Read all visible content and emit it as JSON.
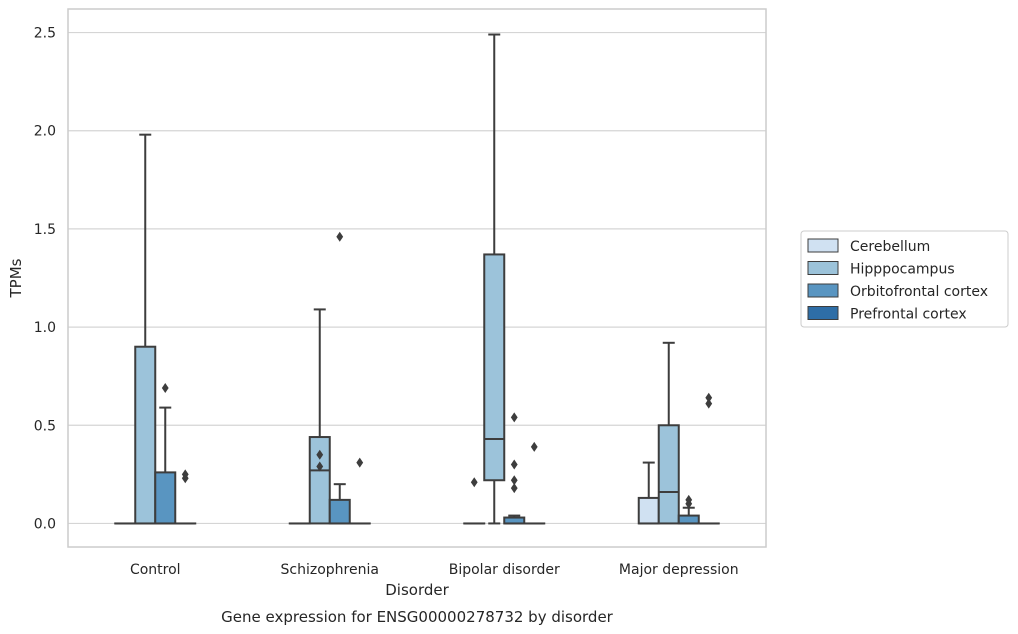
{
  "chart_data": {
    "type": "box",
    "caption": "Gene expression for ENSG00000278732 by disorder",
    "xlabel": "Disorder",
    "ylabel": "TPMs",
    "ylim": [
      -0.12,
      2.62
    ],
    "yticks": [
      "0.0",
      "0.5",
      "1.0",
      "1.5",
      "2.0",
      "2.5"
    ],
    "grid": true,
    "legend_position": "right",
    "categories": [
      "Control",
      "Schizophrenia",
      "Bipolar disorder",
      "Major depression"
    ],
    "series": [
      {
        "name": "Cerebellum",
        "color": "#d0e1f2",
        "boxes": [
          {
            "q1": 0,
            "median": 0,
            "q3": 0,
            "whisker_low": 0,
            "whisker_high": 0,
            "outliers": []
          },
          {
            "q1": 0,
            "median": 0,
            "q3": 0,
            "whisker_low": 0,
            "whisker_high": 0,
            "outliers": []
          },
          {
            "q1": 0,
            "median": 0,
            "q3": 0,
            "whisker_low": 0,
            "whisker_high": 0,
            "outliers": [
              0.21
            ]
          },
          {
            "q1": 0,
            "median": 0,
            "q3": 0.13,
            "whisker_low": 0,
            "whisker_high": 0.31,
            "outliers": []
          }
        ]
      },
      {
        "name": "Hipppocampus",
        "color": "#9cc3da",
        "boxes": [
          {
            "q1": 0,
            "median": 0,
            "q3": 0.9,
            "whisker_low": 0,
            "whisker_high": 1.98,
            "outliers": []
          },
          {
            "q1": 0,
            "median": 0.27,
            "q3": 0.44,
            "whisker_low": 0,
            "whisker_high": 1.09,
            "outliers": [
              0.29,
              0.35
            ]
          },
          {
            "q1": 0.22,
            "median": 0.43,
            "q3": 1.37,
            "whisker_low": 0,
            "whisker_high": 2.49,
            "outliers": []
          },
          {
            "q1": 0,
            "median": 0.16,
            "q3": 0.5,
            "whisker_low": 0,
            "whisker_high": 0.92,
            "outliers": []
          }
        ]
      },
      {
        "name": "Orbitofrontal cortex",
        "color": "#5995c1",
        "boxes": [
          {
            "q1": 0,
            "median": 0,
            "q3": 0.26,
            "whisker_low": 0,
            "whisker_high": 0.59,
            "outliers": [
              0.69
            ]
          },
          {
            "q1": 0,
            "median": 0,
            "q3": 0.12,
            "whisker_low": 0,
            "whisker_high": 0.2,
            "outliers": [
              1.46
            ]
          },
          {
            "q1": 0,
            "median": 0,
            "q3": 0.03,
            "whisker_low": 0,
            "whisker_high": 0.04,
            "outliers": [
              0.18,
              0.22,
              0.3,
              0.54
            ]
          },
          {
            "q1": 0,
            "median": 0,
            "q3": 0.04,
            "whisker_low": 0,
            "whisker_high": 0.08,
            "outliers": [
              0.1,
              0.12
            ]
          }
        ]
      },
      {
        "name": "Prefrontal cortex",
        "color": "#2e6ea7",
        "boxes": [
          {
            "q1": 0,
            "median": 0,
            "q3": 0,
            "whisker_low": 0,
            "whisker_high": 0,
            "outliers": [
              0.23,
              0.25
            ]
          },
          {
            "q1": 0,
            "median": 0,
            "q3": 0,
            "whisker_low": 0,
            "whisker_high": 0,
            "outliers": [
              0.31
            ]
          },
          {
            "q1": 0,
            "median": 0,
            "q3": 0,
            "whisker_low": 0,
            "whisker_high": 0,
            "outliers": [
              0.39
            ]
          },
          {
            "q1": 0,
            "median": 0,
            "q3": 0,
            "whisker_low": 0,
            "whisker_high": 0,
            "outliers": [
              0.61,
              0.64
            ]
          }
        ]
      }
    ]
  }
}
